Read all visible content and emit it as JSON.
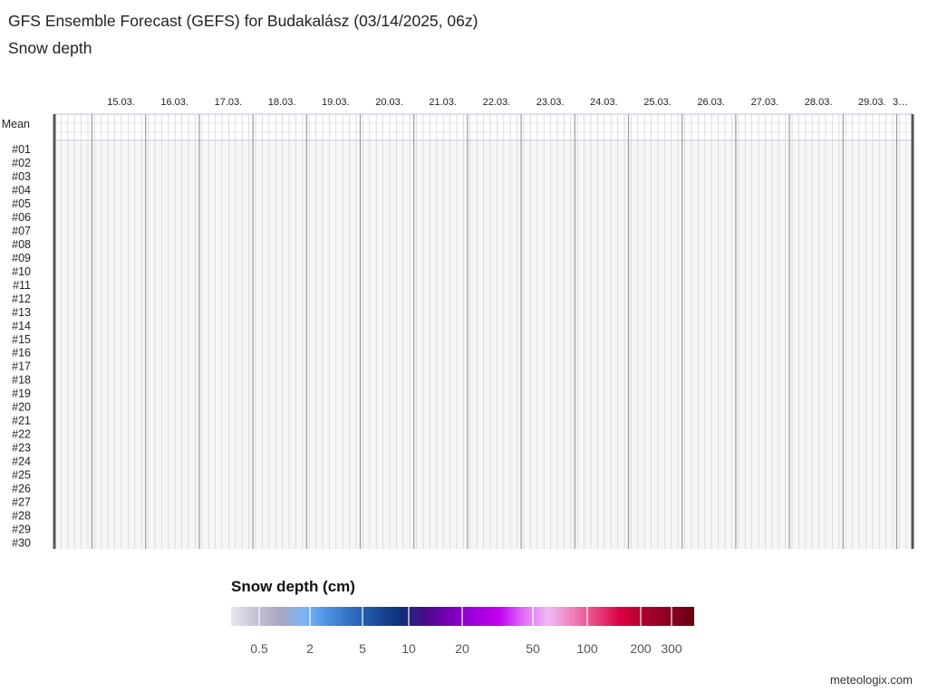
{
  "title": "GFS Ensemble Forecast (GEFS) for Budakalász (03/14/2025, 06z)",
  "subtitle": "Snow depth",
  "chart_data": {
    "type": "heatmap",
    "variable": "Snow depth",
    "x_dates": [
      "15.03.",
      "16.03.",
      "17.03.",
      "18.03.",
      "19.03.",
      "20.03.",
      "21.03.",
      "22.03.",
      "23.03.",
      "24.03.",
      "25.03.",
      "26.03.",
      "27.03.",
      "28.03.",
      "29.03.",
      "3…"
    ],
    "rows": [
      "Mean",
      "#01",
      "#02",
      "#03",
      "#04",
      "#05",
      "#06",
      "#07",
      "#08",
      "#09",
      "#10",
      "#11",
      "#12",
      "#13",
      "#14",
      "#15",
      "#16",
      "#17",
      "#18",
      "#19",
      "#20",
      "#21",
      "#22",
      "#23",
      "#24",
      "#25",
      "#26",
      "#27",
      "#28",
      "#29",
      "#30"
    ],
    "values_note_all_zero": true,
    "values": 0
  },
  "legend": {
    "title": "Snow depth (cm)",
    "ticks": [
      "0.5",
      "2",
      "5",
      "10",
      "20",
      "50",
      "100",
      "200",
      "300"
    ],
    "colors": [
      "#e8e6ee",
      "#c5c2d6",
      "#a9a7c3",
      "#7ab6f5",
      "#4a8fe0",
      "#2f6cc0",
      "#1a4a9a",
      "#0f2f78",
      "#4b0a8a",
      "#7a00b8",
      "#a000dd",
      "#c200f0",
      "#e070f5",
      "#f0b8f5",
      "#f080b8",
      "#e84080",
      "#d80040",
      "#a80030",
      "#880020",
      "#6a0010"
    ]
  },
  "credit": "meteologix.com"
}
